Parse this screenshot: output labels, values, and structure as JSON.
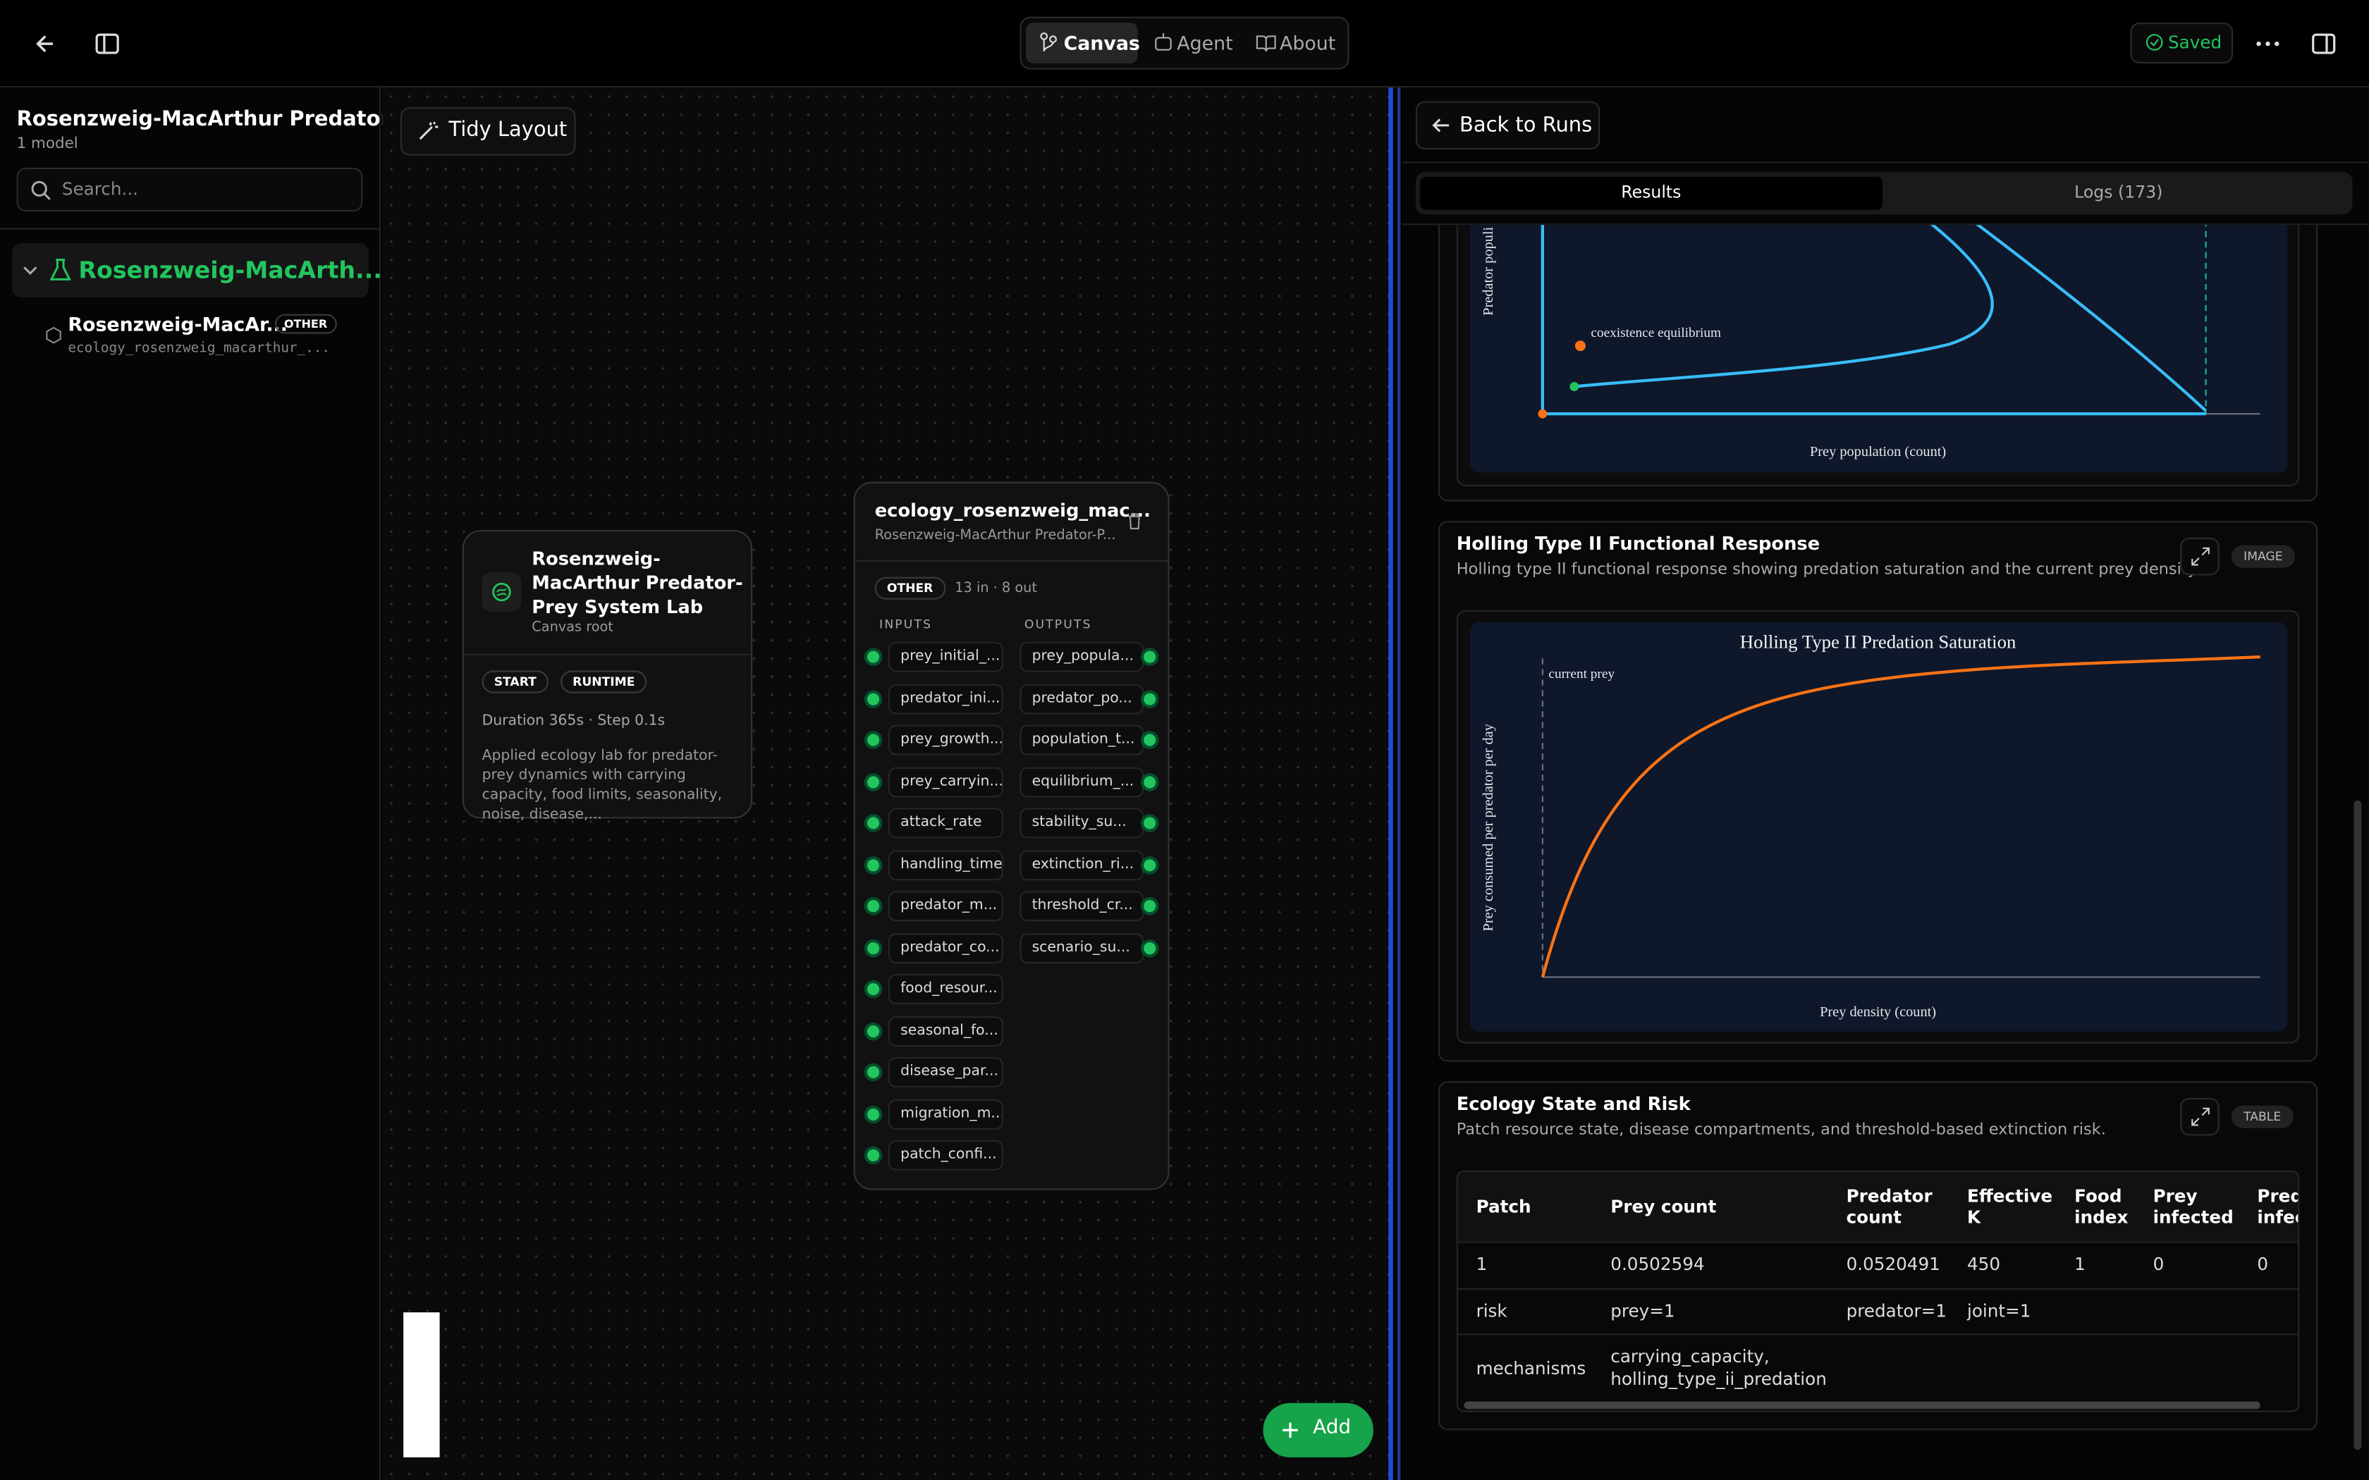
{
  "topbar": {
    "tabs": [
      "Canvas",
      "Agent",
      "About"
    ],
    "status": "Saved"
  },
  "sidebar": {
    "title": "Rosenzweig-MacArthur Predator-...",
    "subtitle": "1 model",
    "search": "Search...",
    "group": "Rosenzweig-MacArth...",
    "item": {
      "name": "Rosenzweig-MacAr...",
      "badge": "OTHER",
      "id": "ecology_rosenzweig_macarthur_..."
    }
  },
  "canvas": {
    "tidy": "Tidy Layout",
    "add": "Add",
    "root_node": {
      "title": "Rosenzweig-MacArthur Predator-Prey System Lab",
      "subtitle": "Canvas root",
      "badges": [
        "START",
        "RUNTIME"
      ],
      "meta": "Duration 365s · Step 0.1s",
      "description": "Applied ecology lab for predator-prey dynamics with carrying capacity, food limits, seasonality, noise, disease,..."
    },
    "model_node": {
      "title": "ecology_rosenzweig_mac...",
      "subtitle": "Rosenzweig-MacArthur Predator-P...",
      "badge": "OTHER",
      "counts": "13 in · 8 out",
      "inputs_label": "INPUTS",
      "outputs_label": "OUTPUTS",
      "inputs": [
        "prey_initial_...",
        "predator_ini...",
        "prey_growth...",
        "prey_carryin...",
        "attack_rate",
        "handling_time",
        "predator_m...",
        "predator_co...",
        "food_resour...",
        "seasonal_fo...",
        "disease_par...",
        "migration_m...",
        "patch_confi..."
      ],
      "outputs": [
        "prey_popula...",
        "predator_po...",
        "population_t...",
        "equilibrium_...",
        "stability_su...",
        "extinction_ri...",
        "threshold_cr...",
        "scenario_su..."
      ]
    }
  },
  "panel": {
    "back": "Back to Runs",
    "tabs": [
      "Results",
      "Logs (173)"
    ],
    "phase_plot": {
      "y_label": "Predator populi",
      "annotation": "coexistence equilibrium",
      "x_label": "Prey population (count)"
    },
    "holling": {
      "title": "Holling Type II Functional Response",
      "description": "Holling type II functional response showing predation saturation and the current prey density.",
      "badge": "IMAGE",
      "plot_title": "Holling Type II Predation Saturation",
      "annotation": "current prey",
      "y_label": "Prey consumed per predator per day",
      "x_label": "Prey density (count)"
    },
    "ecology": {
      "title": "Ecology State and Risk",
      "description": "Patch resource state, disease compartments, and threshold-based extinction risk.",
      "badge": "TABLE",
      "table": {
        "header": [
          "Patch",
          "Prey count",
          "Predator count",
          "Effective K",
          "Food index",
          "Prey infected",
          "Predator infected"
        ],
        "rows": [
          [
            "1",
            "0.0502594",
            "0.0520491",
            "450",
            "1",
            "0",
            "0"
          ],
          [
            "risk",
            "prey=1",
            "predator=1",
            "joint=1"
          ],
          [
            "mechanisms",
            "carrying_capacity, holling_type_ii_predation"
          ]
        ]
      }
    }
  }
}
